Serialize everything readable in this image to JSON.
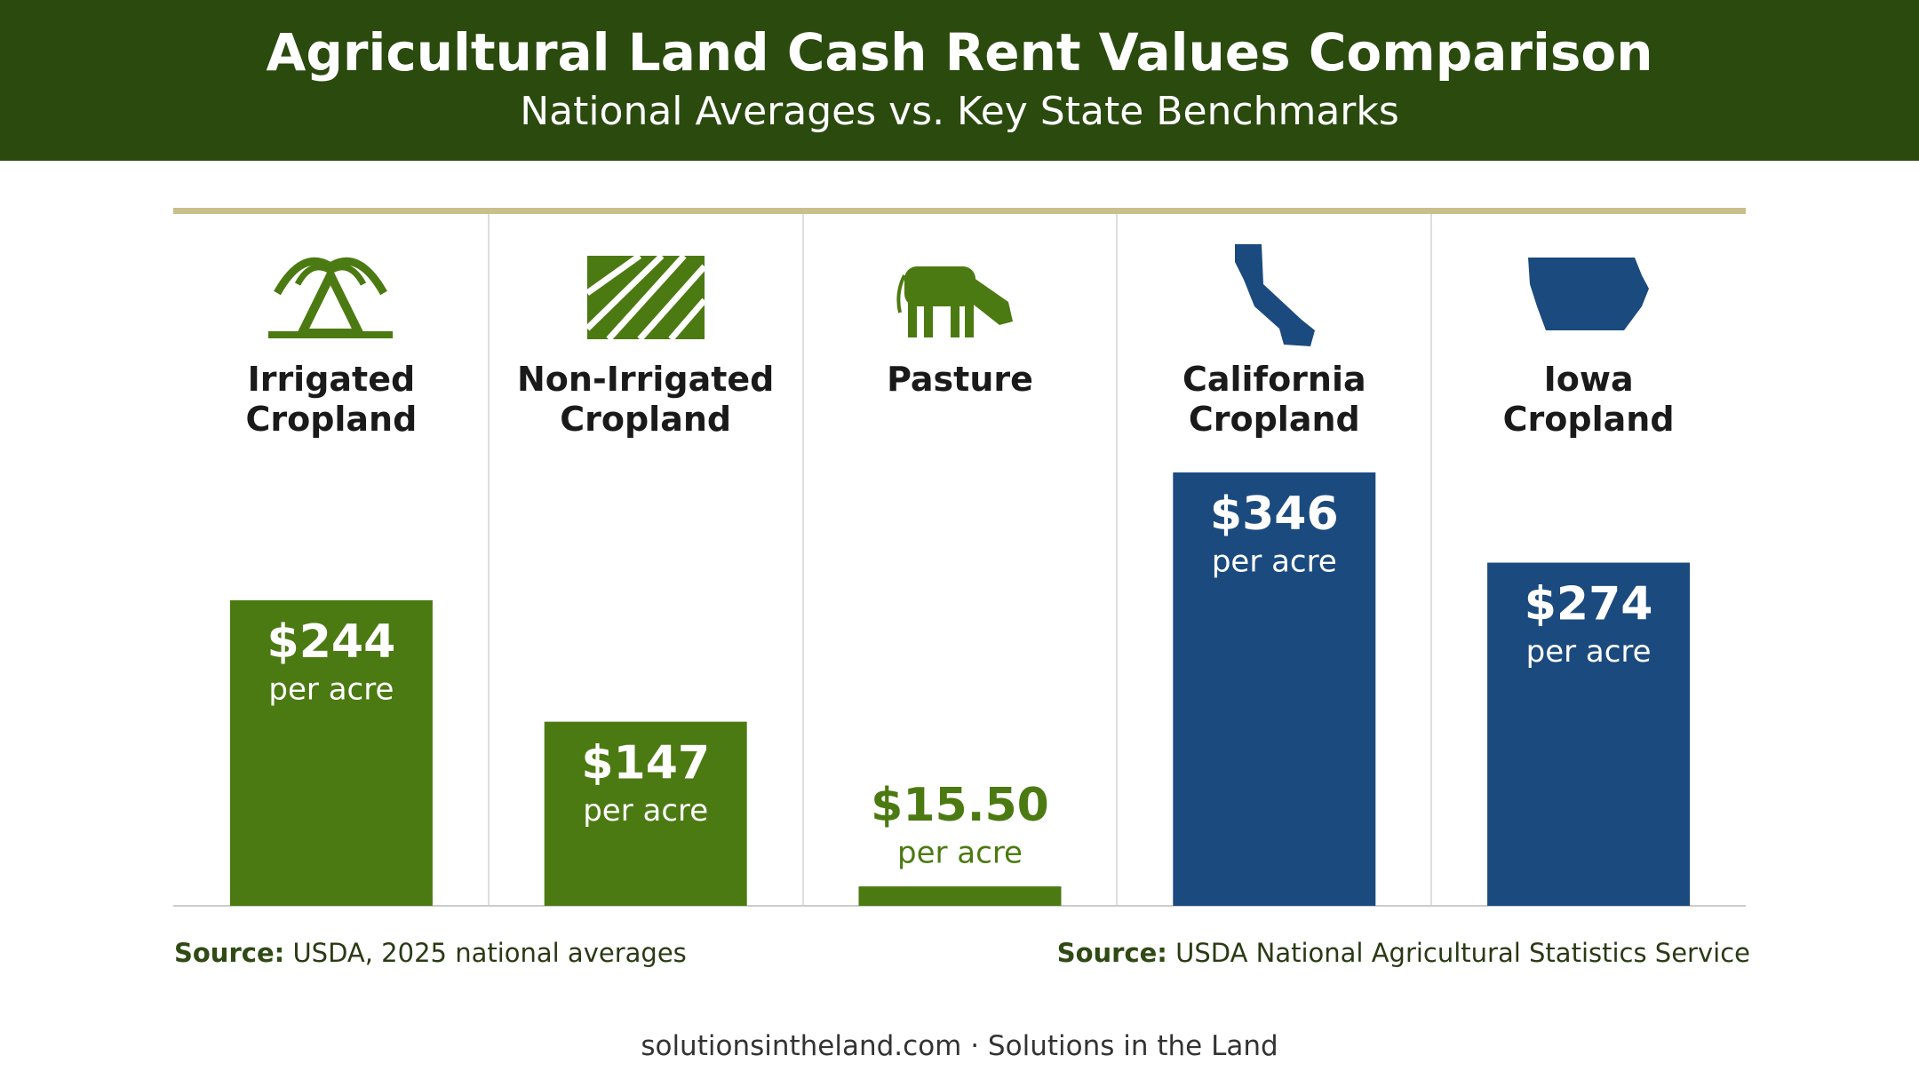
{
  "chart_data": {
    "type": "bar",
    "title": "Agricultural Land Cash Rent Values Comparison",
    "subtitle": "National Averages vs. Key State Benchmarks",
    "categories": [
      "Irrigated\nCropland",
      "Non-Irrigated\nCropland",
      "Pasture",
      "California\nCropland",
      "Iowa\nCropland"
    ],
    "values": [
      244,
      147,
      15.5,
      346,
      274
    ],
    "value_labels": [
      "$244",
      "$147",
      "$15.50",
      "$346",
      "$274"
    ],
    "value_unit": "per acre",
    "colors": [
      "#4c7a12",
      "#4c7a12",
      "#4c7a12",
      "#1b4a7e",
      "#1b4a7e"
    ],
    "sources": [
      {
        "label": "Source:",
        "text": "USDA, 2025 national averages"
      },
      {
        "label": "Source:",
        "text": "USDA National Agricultural Statistics Service"
      }
    ],
    "footer": "solutionsintheland.com · Solutions in the Land"
  }
}
